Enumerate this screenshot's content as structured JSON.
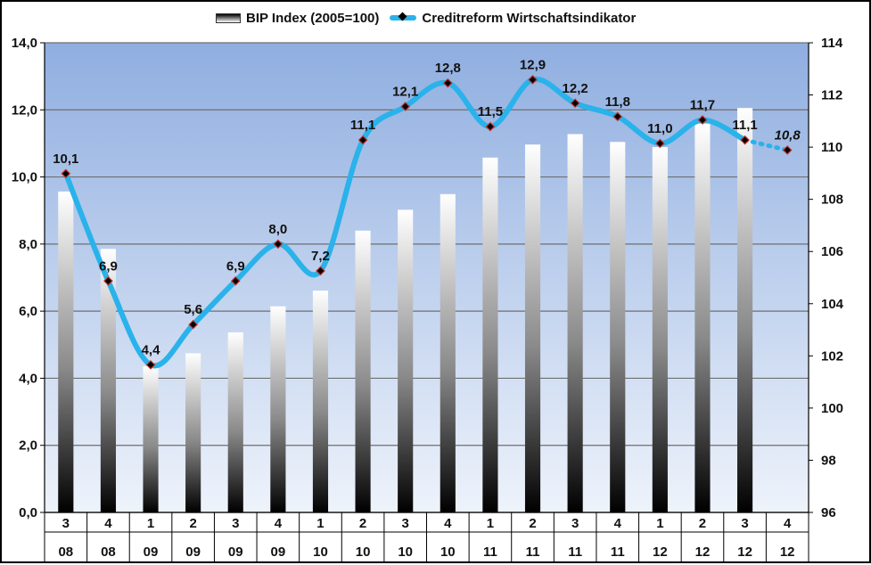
{
  "chart_data": {
    "type": "bar",
    "categories": [
      [
        "3",
        "08"
      ],
      [
        "4",
        "08"
      ],
      [
        "1",
        "09"
      ],
      [
        "2",
        "09"
      ],
      [
        "3",
        "09"
      ],
      [
        "4",
        "09"
      ],
      [
        "1",
        "10"
      ],
      [
        "2",
        "10"
      ],
      [
        "3",
        "10"
      ],
      [
        "4",
        "10"
      ],
      [
        "1",
        "11"
      ],
      [
        "2",
        "11"
      ],
      [
        "3",
        "11"
      ],
      [
        "4",
        "11"
      ],
      [
        "1",
        "12"
      ],
      [
        "2",
        "12"
      ],
      [
        "3",
        "12"
      ],
      [
        "4",
        "12"
      ]
    ],
    "series": [
      {
        "name": "BIP Index (2005=100)",
        "type": "bar",
        "axis": "right",
        "values": [
          108.3,
          106.1,
          101.6,
          102.1,
          102.9,
          103.9,
          104.5,
          106.8,
          107.6,
          108.2,
          109.6,
          110.1,
          110.5,
          110.2,
          110.0,
          110.9,
          111.5,
          null
        ]
      },
      {
        "name": "Creditreform Wirtschaftsindikator",
        "type": "line",
        "axis": "left",
        "values": [
          10.1,
          6.9,
          4.4,
          5.6,
          6.9,
          8.0,
          7.2,
          11.1,
          12.1,
          12.8,
          11.5,
          12.9,
          12.2,
          11.8,
          11.0,
          11.7,
          11.1,
          10.8
        ],
        "labels": [
          "10,1",
          "6,9",
          "4,4",
          "5,6",
          "6,9",
          "8,0",
          "7,2",
          "11,1",
          "12,1",
          "12,8",
          "11,5",
          "12,9",
          "12,2",
          "11,8",
          "11,0",
          "11,7",
          "11,1",
          "10,8"
        ],
        "forecast_from_index": 16
      }
    ],
    "y_left": {
      "ylim": [
        0,
        14
      ],
      "ticks": [
        "0,0",
        "2,0",
        "4,0",
        "6,0",
        "8,0",
        "10,0",
        "12,0",
        "14,0"
      ]
    },
    "y_right": {
      "ylim": [
        96,
        114
      ],
      "ticks": [
        "96",
        "98",
        "100",
        "102",
        "104",
        "106",
        "108",
        "110",
        "112",
        "114"
      ]
    },
    "grid": true,
    "legend_position": "top-center",
    "colors": {
      "line": "#2ab2ea",
      "marker": "#000000",
      "marker_edge": "#c0312b",
      "plot_bg_top": "#8faee0",
      "plot_bg_bottom": "#eef3fb",
      "bar_top": "#ffffff",
      "bar_bottom": "#000000"
    }
  }
}
